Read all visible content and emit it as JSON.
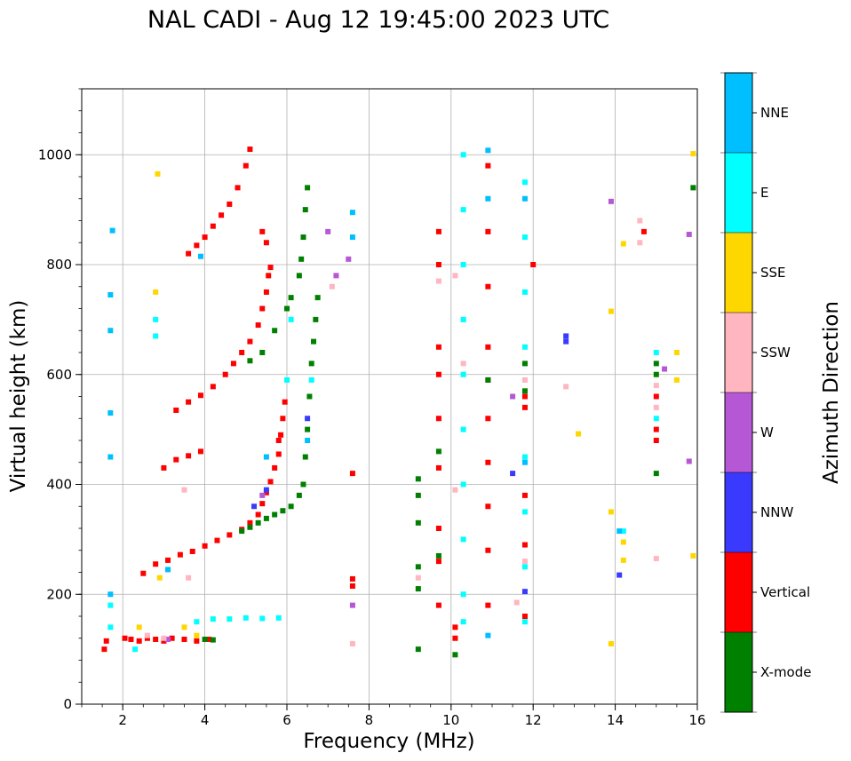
{
  "chart_data": {
    "type": "scatter",
    "title": "NAL CADI - Aug 12 19:45:00 2023 UTC",
    "xlabel": "Frequency (MHz)",
    "ylabel": "Virtual height (km)",
    "xlim": [
      1,
      16
    ],
    "ylim": [
      0,
      1120
    ],
    "xticks": [
      2,
      4,
      6,
      8,
      10,
      12,
      14,
      16
    ],
    "yticks": [
      0,
      200,
      400,
      600,
      800,
      1000
    ],
    "grid": true,
    "colorbar": {
      "label": "Azimuth Direction",
      "categories": [
        {
          "name": "X-mode",
          "color": "#008000"
        },
        {
          "name": "Vertical",
          "color": "#ff0000"
        },
        {
          "name": "NNW",
          "color": "#3a3aff"
        },
        {
          "name": "W",
          "color": "#b657d6"
        },
        {
          "name": "SSW",
          "color": "#ffb6c1"
        },
        {
          "name": "SSE",
          "color": "#ffd700"
        },
        {
          "name": "E",
          "color": "#00ffff"
        },
        {
          "name": "NNE",
          "color": "#00bfff"
        }
      ]
    },
    "series": [
      {
        "name": "Vertical",
        "points": [
          [
            1.55,
            100
          ],
          [
            1.6,
            115
          ],
          [
            2.05,
            120
          ],
          [
            2.2,
            118
          ],
          [
            2.4,
            115
          ],
          [
            2.6,
            120
          ],
          [
            2.8,
            118
          ],
          [
            3.0,
            115
          ],
          [
            3.2,
            120
          ],
          [
            3.5,
            118
          ],
          [
            3.8,
            115
          ],
          [
            4.1,
            118
          ],
          [
            2.5,
            238
          ],
          [
            2.8,
            255
          ],
          [
            3.1,
            262
          ],
          [
            3.4,
            272
          ],
          [
            3.7,
            278
          ],
          [
            4.0,
            288
          ],
          [
            4.3,
            298
          ],
          [
            4.6,
            308
          ],
          [
            4.9,
            318
          ],
          [
            5.1,
            330
          ],
          [
            5.3,
            345
          ],
          [
            5.4,
            365
          ],
          [
            5.5,
            385
          ],
          [
            5.6,
            405
          ],
          [
            5.7,
            430
          ],
          [
            5.8,
            455
          ],
          [
            5.85,
            490
          ],
          [
            5.9,
            520
          ],
          [
            5.95,
            550
          ],
          [
            3.0,
            430
          ],
          [
            3.3,
            445
          ],
          [
            3.6,
            452
          ],
          [
            3.9,
            460
          ],
          [
            3.3,
            535
          ],
          [
            3.6,
            550
          ],
          [
            3.9,
            562
          ],
          [
            4.2,
            578
          ],
          [
            4.5,
            600
          ],
          [
            4.7,
            620
          ],
          [
            4.9,
            640
          ],
          [
            5.1,
            660
          ],
          [
            5.3,
            690
          ],
          [
            5.4,
            720
          ],
          [
            5.5,
            750
          ],
          [
            5.55,
            780
          ],
          [
            5.6,
            795
          ],
          [
            3.6,
            820
          ],
          [
            3.8,
            835
          ],
          [
            4.0,
            850
          ],
          [
            4.2,
            870
          ],
          [
            4.4,
            890
          ],
          [
            4.6,
            910
          ],
          [
            4.8,
            940
          ],
          [
            5.0,
            980
          ],
          [
            5.1,
            1010
          ],
          [
            5.4,
            860
          ],
          [
            5.5,
            840
          ],
          [
            5.8,
            480
          ],
          [
            7.6,
            420
          ],
          [
            7.6,
            228
          ],
          [
            7.6,
            215
          ],
          [
            9.7,
            860
          ],
          [
            9.7,
            800
          ],
          [
            9.7,
            650
          ],
          [
            9.7,
            600
          ],
          [
            9.7,
            520
          ],
          [
            9.7,
            430
          ],
          [
            9.7,
            320
          ],
          [
            9.7,
            260
          ],
          [
            9.7,
            180
          ],
          [
            10.1,
            140
          ],
          [
            10.1,
            120
          ],
          [
            10.9,
            980
          ],
          [
            10.9,
            860
          ],
          [
            10.9,
            760
          ],
          [
            10.9,
            650
          ],
          [
            10.9,
            590
          ],
          [
            10.9,
            520
          ],
          [
            10.9,
            440
          ],
          [
            10.9,
            360
          ],
          [
            10.9,
            280
          ],
          [
            10.9,
            180
          ],
          [
            11.8,
            560
          ],
          [
            11.8,
            540
          ],
          [
            11.8,
            380
          ],
          [
            11.8,
            290
          ],
          [
            11.8,
            160
          ],
          [
            12,
            800
          ],
          [
            15,
            480
          ],
          [
            15,
            500
          ],
          [
            15,
            560
          ],
          [
            14.7,
            860
          ]
        ]
      },
      {
        "name": "X-mode",
        "points": [
          [
            4.0,
            118
          ],
          [
            4.2,
            117
          ],
          [
            4.9,
            315
          ],
          [
            5.1,
            322
          ],
          [
            5.3,
            330
          ],
          [
            5.5,
            338
          ],
          [
            5.7,
            345
          ],
          [
            5.9,
            352
          ],
          [
            6.1,
            360
          ],
          [
            6.3,
            380
          ],
          [
            6.4,
            400
          ],
          [
            6.45,
            450
          ],
          [
            6.5,
            500
          ],
          [
            6.55,
            560
          ],
          [
            6.6,
            620
          ],
          [
            6.65,
            660
          ],
          [
            6.7,
            700
          ],
          [
            6.75,
            740
          ],
          [
            6.3,
            780
          ],
          [
            6.35,
            810
          ],
          [
            6.4,
            850
          ],
          [
            6.45,
            900
          ],
          [
            6.5,
            940
          ],
          [
            5.1,
            625
          ],
          [
            5.4,
            640
          ],
          [
            5.7,
            680
          ],
          [
            6.0,
            720
          ],
          [
            6.1,
            740
          ],
          [
            9.2,
            410
          ],
          [
            9.2,
            380
          ],
          [
            9.2,
            330
          ],
          [
            9.2,
            250
          ],
          [
            9.2,
            210
          ],
          [
            9.2,
            100
          ],
          [
            9.7,
            270
          ],
          [
            9.7,
            460
          ],
          [
            10.1,
            90
          ],
          [
            10.9,
            590
          ],
          [
            11.8,
            620
          ],
          [
            11.8,
            570
          ],
          [
            15,
            600
          ],
          [
            15,
            620
          ],
          [
            15,
            420
          ],
          [
            15.9,
            940
          ]
        ]
      },
      {
        "name": "NNW",
        "points": [
          [
            5.2,
            360
          ],
          [
            5.5,
            390
          ],
          [
            6.5,
            520
          ],
          [
            11.5,
            420
          ],
          [
            12.8,
            670
          ],
          [
            12.8,
            660
          ],
          [
            14.1,
            235
          ],
          [
            11.8,
            205
          ]
        ]
      },
      {
        "name": "W",
        "points": [
          [
            3.1,
            118
          ],
          [
            5.4,
            380
          ],
          [
            7.2,
            780
          ],
          [
            7.0,
            860
          ],
          [
            7.5,
            810
          ],
          [
            7.6,
            180
          ],
          [
            11.5,
            560
          ],
          [
            13.9,
            915
          ],
          [
            15.2,
            610
          ],
          [
            15.8,
            855
          ],
          [
            15.8,
            442
          ]
        ]
      },
      {
        "name": "SSW",
        "points": [
          [
            2.6,
            125
          ],
          [
            3.0,
            120
          ],
          [
            3.5,
            390
          ],
          [
            3.6,
            230
          ],
          [
            7.1,
            760
          ],
          [
            7.6,
            110
          ],
          [
            9.2,
            230
          ],
          [
            9.7,
            770
          ],
          [
            10.1,
            780
          ],
          [
            10.1,
            390
          ],
          [
            10.3,
            700
          ],
          [
            10.3,
            620
          ],
          [
            11.6,
            185
          ],
          [
            12.8,
            578
          ],
          [
            14.6,
            880
          ],
          [
            14.6,
            840
          ],
          [
            15,
            540
          ],
          [
            15,
            580
          ],
          [
            15,
            265
          ],
          [
            11.8,
            590
          ],
          [
            11.8,
            260
          ]
        ]
      },
      {
        "name": "SSE",
        "points": [
          [
            2.4,
            140
          ],
          [
            2.8,
            750
          ],
          [
            2.85,
            965
          ],
          [
            2.9,
            230
          ],
          [
            3.5,
            140
          ],
          [
            3.8,
            125
          ],
          [
            13.9,
            715
          ],
          [
            13.9,
            350
          ],
          [
            13.9,
            110
          ],
          [
            14.2,
            838
          ],
          [
            14.2,
            295
          ],
          [
            14.2,
            262
          ],
          [
            13.1,
            492
          ],
          [
            15.5,
            640
          ],
          [
            15.5,
            590
          ],
          [
            15.9,
            1002
          ],
          [
            15.9,
            270
          ]
        ]
      },
      {
        "name": "E",
        "points": [
          [
            1.7,
            140
          ],
          [
            1.7,
            180
          ],
          [
            2.3,
            100
          ],
          [
            2.8,
            700
          ],
          [
            2.8,
            670
          ],
          [
            3.8,
            150
          ],
          [
            4.2,
            155
          ],
          [
            4.6,
            155
          ],
          [
            5.0,
            157
          ],
          [
            5.4,
            156
          ],
          [
            5.8,
            157
          ],
          [
            6.0,
            590
          ],
          [
            6.1,
            700
          ],
          [
            6.6,
            590
          ],
          [
            10.3,
            1000
          ],
          [
            10.3,
            900
          ],
          [
            10.3,
            800
          ],
          [
            10.3,
            700
          ],
          [
            10.3,
            600
          ],
          [
            10.3,
            500
          ],
          [
            10.3,
            400
          ],
          [
            10.3,
            300
          ],
          [
            10.3,
            200
          ],
          [
            10.3,
            150
          ],
          [
            11.8,
            950
          ],
          [
            11.8,
            850
          ],
          [
            11.8,
            750
          ],
          [
            11.8,
            650
          ],
          [
            11.8,
            450
          ],
          [
            11.8,
            350
          ],
          [
            11.8,
            250
          ],
          [
            11.8,
            150
          ],
          [
            15,
            640
          ],
          [
            15,
            520
          ],
          [
            14.2,
            315
          ]
        ]
      },
      {
        "name": "NNE",
        "points": [
          [
            1.7,
            745
          ],
          [
            1.7,
            680
          ],
          [
            1.7,
            530
          ],
          [
            1.7,
            450
          ],
          [
            1.75,
            862
          ],
          [
            1.7,
            200
          ],
          [
            3.1,
            245
          ],
          [
            3.9,
            815
          ],
          [
            5.5,
            450
          ],
          [
            6.5,
            480
          ],
          [
            7.6,
            895
          ],
          [
            7.6,
            850
          ],
          [
            10.9,
            1008
          ],
          [
            10.9,
            920
          ],
          [
            10.9,
            125
          ],
          [
            14.1,
            315
          ],
          [
            11.8,
            920
          ],
          [
            11.8,
            440
          ]
        ]
      }
    ]
  }
}
